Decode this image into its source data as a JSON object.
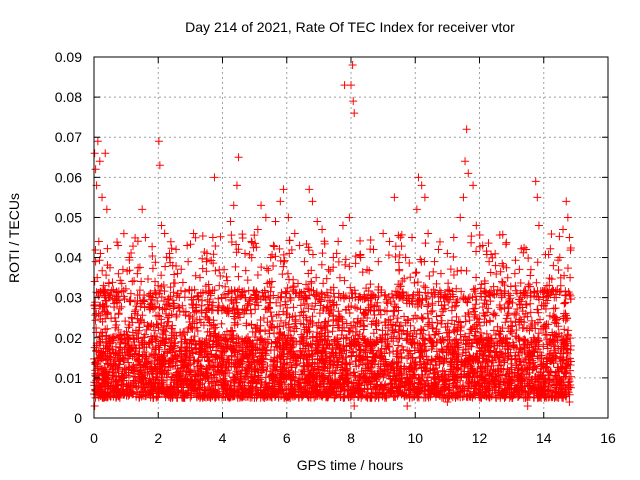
{
  "chart_data": {
    "type": "scatter",
    "title": "Day 214 of 2021, Rate Of TEC Index for receiver vtor",
    "xlabel": "GPS time / hours",
    "ylabel": "ROTI / TECUs",
    "xlim": [
      0,
      16
    ],
    "ylim": [
      0,
      0.09
    ],
    "x_ticks": [
      "0",
      "2",
      "4",
      "6",
      "8",
      "10",
      "12",
      "14",
      "16"
    ],
    "y_ticks": [
      "0",
      "0.01",
      "0.02",
      "0.03",
      "0.04",
      "0.05",
      "0.06",
      "0.07",
      "0.08",
      "0.09"
    ],
    "grid": true,
    "marker": "+",
    "series_color": "#ff0000",
    "data_range": {
      "x": [
        0,
        14.85
      ],
      "typical_y": [
        0.005,
        0.02
      ]
    },
    "series": [
      {
        "points": [
          [
            0.02,
            0.066
          ],
          [
            0.05,
            0.062
          ],
          [
            0.08,
            0.058
          ],
          [
            0.12,
            0.069
          ],
          [
            0.18,
            0.064
          ],
          [
            0.25,
            0.055
          ],
          [
            0.35,
            0.066
          ],
          [
            0.4,
            0.052
          ],
          [
            0.05,
            0.039
          ],
          [
            0.1,
            0.035
          ],
          [
            0.15,
            0.044
          ],
          [
            0.2,
            0.041
          ],
          [
            0.3,
            0.033
          ],
          [
            0.45,
            0.03
          ],
          [
            0.6,
            0.032
          ],
          [
            0.75,
            0.043
          ],
          [
            0.9,
            0.037
          ],
          [
            1.1,
            0.04
          ],
          [
            1.35,
            0.036
          ],
          [
            1.5,
            0.052
          ],
          [
            1.6,
            0.045
          ],
          [
            1.75,
            0.031
          ],
          [
            1.9,
            0.034
          ],
          [
            2.02,
            0.069
          ],
          [
            2.05,
            0.063
          ],
          [
            2.1,
            0.048
          ],
          [
            2.2,
            0.046
          ],
          [
            2.35,
            0.041
          ],
          [
            2.45,
            0.038
          ],
          [
            2.6,
            0.036
          ],
          [
            2.75,
            0.028
          ],
          [
            2.9,
            0.043
          ],
          [
            3.1,
            0.046
          ],
          [
            3.3,
            0.035
          ],
          [
            3.5,
            0.039
          ],
          [
            3.7,
            0.045
          ],
          [
            3.75,
            0.06
          ],
          [
            3.9,
            0.033
          ],
          [
            4.05,
            0.037
          ],
          [
            4.25,
            0.049
          ],
          [
            4.35,
            0.053
          ],
          [
            4.45,
            0.058
          ],
          [
            4.5,
            0.065
          ],
          [
            4.7,
            0.041
          ],
          [
            4.9,
            0.044
          ],
          [
            5.1,
            0.047
          ],
          [
            5.2,
            0.053
          ],
          [
            5.35,
            0.05
          ],
          [
            5.5,
            0.04
          ],
          [
            5.65,
            0.049
          ],
          [
            5.8,
            0.054
          ],
          [
            5.9,
            0.057
          ],
          [
            6.05,
            0.05
          ],
          [
            6.25,
            0.046
          ],
          [
            6.4,
            0.043
          ],
          [
            6.55,
            0.039
          ],
          [
            6.7,
            0.057
          ],
          [
            6.8,
            0.054
          ],
          [
            6.95,
            0.049
          ],
          [
            7.1,
            0.047
          ],
          [
            7.3,
            0.037
          ],
          [
            7.45,
            0.04
          ],
          [
            7.6,
            0.044
          ],
          [
            7.75,
            0.048
          ],
          [
            7.8,
            0.083
          ],
          [
            7.95,
            0.05
          ],
          [
            8.0,
            0.083
          ],
          [
            8.05,
            0.088
          ],
          [
            8.07,
            0.079
          ],
          [
            8.1,
            0.076
          ],
          [
            8.3,
            0.04
          ],
          [
            8.5,
            0.037
          ],
          [
            8.7,
            0.042
          ],
          [
            8.85,
            0.039
          ],
          [
            9.0,
            0.046
          ],
          [
            9.2,
            0.044
          ],
          [
            9.35,
            0.055
          ],
          [
            9.5,
            0.037
          ],
          [
            9.7,
            0.04
          ],
          [
            9.9,
            0.045
          ],
          [
            10.05,
            0.052
          ],
          [
            10.1,
            0.06
          ],
          [
            10.2,
            0.058
          ],
          [
            10.3,
            0.055
          ],
          [
            10.4,
            0.046
          ],
          [
            10.6,
            0.039
          ],
          [
            10.8,
            0.036
          ],
          [
            11.0,
            0.041
          ],
          [
            11.2,
            0.045
          ],
          [
            11.4,
            0.05
          ],
          [
            11.5,
            0.055
          ],
          [
            11.55,
            0.064
          ],
          [
            11.6,
            0.072
          ],
          [
            11.65,
            0.061
          ],
          [
            11.8,
            0.058
          ],
          [
            11.9,
            0.048
          ],
          [
            12.1,
            0.043
          ],
          [
            12.3,
            0.039
          ],
          [
            12.5,
            0.038
          ],
          [
            12.7,
            0.034
          ],
          [
            12.9,
            0.031
          ],
          [
            13.1,
            0.036
          ],
          [
            13.3,
            0.029
          ],
          [
            13.45,
            0.042
          ],
          [
            13.6,
            0.037
          ],
          [
            13.75,
            0.059
          ],
          [
            13.8,
            0.055
          ],
          [
            13.85,
            0.048
          ],
          [
            14.1,
            0.033
          ],
          [
            14.3,
            0.038
          ],
          [
            14.5,
            0.04
          ],
          [
            14.6,
            0.047
          ],
          [
            14.7,
            0.054
          ],
          [
            14.75,
            0.05
          ],
          [
            14.8,
            0.045
          ],
          [
            14.82,
            0.035
          ],
          [
            0.02,
            0.003
          ],
          [
            9.75,
            0.003
          ],
          [
            13.5,
            0.003
          ],
          [
            14.8,
            0.004
          ],
          [
            5.3,
            0.005
          ],
          [
            8.1,
            0.003
          ],
          [
            11.0,
            0.004
          ],
          [
            3.3,
            0.005
          ]
        ]
      }
    ]
  }
}
